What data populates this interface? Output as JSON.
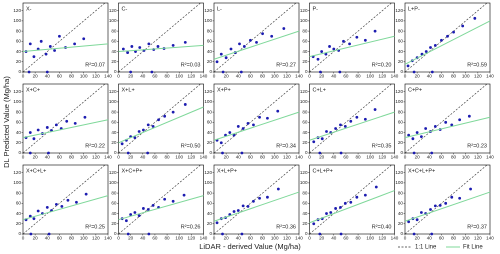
{
  "figure": {
    "ylabel": "DL Predicted Value (Mg/ha)",
    "xlabel": "LiDAR - derived Value (Mg/ha)",
    "legend": [
      {
        "name": "1:1 Line",
        "color": "#333333"
      },
      {
        "name": "Fit Line",
        "color": "#7fd89a"
      }
    ],
    "point_color": "#1c1cb0",
    "one_to_one": [
      0,
      135
    ]
  },
  "chart_data": [
    {
      "type": "scatter",
      "title": "X-",
      "annotation": "R²=0.07",
      "x": [
        5,
        12,
        18,
        25,
        30,
        38,
        45,
        52,
        60,
        70,
        85,
        100,
        10,
        40
      ],
      "y": [
        40,
        55,
        30,
        45,
        60,
        35,
        50,
        42,
        70,
        48,
        55,
        65,
        0,
        0
      ],
      "fit": {
        "x": [
          0,
          140
        ],
        "y": [
          40,
          55
        ]
      },
      "xlim": [
        0,
        140
      ],
      "ylim": [
        0,
        135
      ],
      "xticks": [
        0,
        20,
        40,
        60,
        80,
        100,
        120,
        140
      ],
      "yticks": [
        0,
        20,
        40,
        60,
        80,
        100,
        120
      ]
    },
    {
      "type": "scatter",
      "title": "C-",
      "annotation": "R²=0.03",
      "x": [
        8,
        15,
        22,
        28,
        35,
        42,
        50,
        58,
        65,
        75,
        90,
        110,
        20,
        55
      ],
      "y": [
        45,
        38,
        50,
        40,
        48,
        42,
        55,
        44,
        50,
        46,
        52,
        58,
        0,
        0
      ],
      "fit": {
        "x": [
          0,
          140
        ],
        "y": [
          40,
          52
        ]
      },
      "xlim": [
        0,
        140
      ],
      "ylim": [
        0,
        135
      ],
      "xticks": [
        0,
        20,
        40,
        60,
        80,
        100,
        120,
        140
      ],
      "yticks": [
        0,
        20,
        40,
        60,
        80,
        100,
        120
      ]
    },
    {
      "type": "scatter",
      "title": "L-",
      "annotation": "R²=0.27",
      "x": [
        5,
        12,
        20,
        28,
        35,
        42,
        50,
        60,
        70,
        80,
        95,
        115,
        15,
        45
      ],
      "y": [
        20,
        35,
        28,
        45,
        38,
        55,
        50,
        62,
        58,
        75,
        70,
        85,
        0,
        0
      ],
      "fit": {
        "x": [
          0,
          140
        ],
        "y": [
          25,
          80
        ]
      },
      "xlim": [
        0,
        140
      ],
      "ylim": [
        0,
        135
      ],
      "xticks": [
        0,
        20,
        40,
        60,
        80,
        100,
        120,
        140
      ],
      "yticks": [
        0,
        20,
        40,
        60,
        80,
        100,
        120
      ]
    },
    {
      "type": "scatter",
      "title": "P-",
      "annotation": "R²=0.20",
      "x": [
        6,
        14,
        20,
        27,
        33,
        40,
        48,
        56,
        66,
        78,
        92,
        108,
        18,
        50
      ],
      "y": [
        30,
        25,
        40,
        35,
        50,
        45,
        42,
        60,
        55,
        68,
        62,
        80,
        0,
        0
      ],
      "fit": {
        "x": [
          0,
          140
        ],
        "y": [
          30,
          70
        ]
      },
      "xlim": [
        0,
        140
      ],
      "ylim": [
        0,
        135
      ],
      "xticks": [
        0,
        20,
        40,
        60,
        80,
        100,
        120,
        140
      ],
      "yticks": [
        0,
        20,
        40,
        60,
        80,
        100,
        120
      ]
    },
    {
      "type": "scatter",
      "title": "L+P-",
      "annotation": "R²=0.59",
      "x": [
        5,
        12,
        20,
        28,
        35,
        42,
        50,
        60,
        70,
        80,
        95,
        115,
        15,
        45
      ],
      "y": [
        12,
        22,
        28,
        35,
        40,
        48,
        52,
        62,
        70,
        78,
        90,
        105,
        0,
        0
      ],
      "fit": {
        "x": [
          0,
          140
        ],
        "y": [
          15,
          100
        ]
      },
      "xlim": [
        0,
        140
      ],
      "ylim": [
        0,
        135
      ],
      "xticks": [
        0,
        20,
        40,
        60,
        80,
        100,
        120,
        140
      ],
      "yticks": [
        0,
        20,
        40,
        60,
        80,
        100,
        120
      ]
    },
    {
      "type": "scatter",
      "title": "X+C+",
      "annotation": "R²=0.22",
      "x": [
        5,
        12,
        18,
        25,
        32,
        40,
        47,
        55,
        63,
        72,
        86,
        102,
        12,
        42
      ],
      "y": [
        30,
        40,
        28,
        45,
        38,
        50,
        44,
        55,
        48,
        62,
        58,
        70,
        0,
        0
      ],
      "fit": {
        "x": [
          0,
          140
        ],
        "y": [
          30,
          65
        ]
      },
      "xlim": [
        0,
        140
      ],
      "ylim": [
        0,
        135
      ],
      "xticks": [
        0,
        20,
        40,
        60,
        80,
        100,
        120,
        140
      ],
      "yticks": [
        0,
        20,
        40,
        60,
        80,
        100,
        120
      ]
    },
    {
      "type": "scatter",
      "title": "X+L+",
      "annotation": "R²=0.50",
      "x": [
        6,
        13,
        20,
        27,
        34,
        41,
        49,
        57,
        66,
        76,
        90,
        110,
        16,
        48
      ],
      "y": [
        18,
        25,
        32,
        30,
        42,
        45,
        55,
        52,
        65,
        72,
        80,
        95,
        0,
        0
      ],
      "fit": {
        "x": [
          0,
          140
        ],
        "y": [
          20,
          90
        ]
      },
      "xlim": [
        0,
        140
      ],
      "ylim": [
        0,
        135
      ],
      "xticks": [
        0,
        20,
        40,
        60,
        80,
        100,
        120,
        140
      ],
      "yticks": [
        0,
        20,
        40,
        60,
        80,
        100,
        120
      ]
    },
    {
      "type": "scatter",
      "title": "X+P+",
      "annotation": "R²=0.34",
      "x": [
        5,
        12,
        19,
        26,
        33,
        40,
        48,
        56,
        65,
        75,
        88,
        105,
        14,
        46
      ],
      "y": [
        25,
        20,
        35,
        40,
        35,
        52,
        48,
        58,
        55,
        70,
        68,
        82,
        0,
        0
      ],
      "fit": {
        "x": [
          0,
          140
        ],
        "y": [
          25,
          80
        ]
      },
      "xlim": [
        0,
        140
      ],
      "ylim": [
        0,
        135
      ],
      "xticks": [
        0,
        20,
        40,
        60,
        80,
        100,
        120,
        140
      ],
      "yticks": [
        0,
        20,
        40,
        60,
        80,
        100,
        120
      ]
    },
    {
      "type": "scatter",
      "title": "C+L+",
      "annotation": "R²=0.35",
      "x": [
        7,
        14,
        21,
        28,
        35,
        43,
        51,
        59,
        68,
        78,
        92,
        108,
        17,
        52
      ],
      "y": [
        22,
        30,
        28,
        42,
        40,
        48,
        55,
        52,
        62,
        70,
        66,
        85,
        0,
        0
      ],
      "fit": {
        "x": [
          0,
          140
        ],
        "y": [
          25,
          80
        ]
      },
      "xlim": [
        0,
        140
      ],
      "ylim": [
        0,
        135
      ],
      "xticks": [
        0,
        20,
        40,
        60,
        80,
        100,
        120,
        140
      ],
      "yticks": [
        0,
        20,
        40,
        60,
        80,
        100,
        120
      ]
    },
    {
      "type": "scatter",
      "title": "C+P+",
      "annotation": "R²=0.23",
      "x": [
        6,
        13,
        20,
        27,
        34,
        42,
        50,
        58,
        67,
        77,
        90,
        106,
        15,
        44
      ],
      "y": [
        35,
        28,
        40,
        32,
        48,
        42,
        52,
        46,
        60,
        55,
        65,
        72,
        0,
        0
      ],
      "fit": {
        "x": [
          0,
          140
        ],
        "y": [
          30,
          70
        ]
      },
      "xlim": [
        0,
        140
      ],
      "ylim": [
        0,
        135
      ],
      "xticks": [
        0,
        20,
        40,
        60,
        80,
        100,
        120,
        140
      ],
      "yticks": [
        0,
        20,
        40,
        60,
        80,
        100,
        120
      ]
    },
    {
      "type": "scatter",
      "title": "X+C+L+",
      "annotation": "R²=0.25",
      "x": [
        5,
        12,
        18,
        25,
        32,
        40,
        47,
        55,
        64,
        74,
        88,
        104,
        13,
        43
      ],
      "y": [
        28,
        35,
        30,
        45,
        40,
        52,
        46,
        58,
        54,
        66,
        62,
        78,
        0,
        0
      ],
      "fit": {
        "x": [
          0,
          140
        ],
        "y": [
          28,
          75
        ]
      },
      "xlim": [
        0,
        140
      ],
      "ylim": [
        0,
        135
      ],
      "xticks": [
        0,
        20,
        40,
        60,
        80,
        100,
        120,
        140
      ],
      "yticks": [
        0,
        20,
        40,
        60,
        80,
        100,
        120
      ]
    },
    {
      "type": "scatter",
      "title": "X+C+P+",
      "annotation": "R²=0.26",
      "x": [
        6,
        13,
        20,
        27,
        34,
        41,
        49,
        57,
        66,
        76,
        90,
        108,
        16,
        50
      ],
      "y": [
        30,
        26,
        38,
        42,
        36,
        50,
        48,
        56,
        52,
        68,
        64,
        76,
        0,
        0
      ],
      "fit": {
        "x": [
          0,
          140
        ],
        "y": [
          28,
          75
        ]
      },
      "xlim": [
        0,
        140
      ],
      "ylim": [
        0,
        135
      ],
      "xticks": [
        0,
        20,
        40,
        60,
        80,
        100,
        120,
        140
      ],
      "yticks": [
        0,
        20,
        40,
        60,
        80,
        100,
        120
      ]
    },
    {
      "type": "scatter",
      "title": "X+L+P+",
      "annotation": "R²=0.36",
      "x": [
        5,
        12,
        19,
        26,
        33,
        40,
        48,
        56,
        65,
        75,
        88,
        106,
        14,
        46
      ],
      "y": [
        22,
        30,
        32,
        38,
        44,
        46,
        55,
        54,
        64,
        70,
        72,
        88,
        0,
        0
      ],
      "fit": {
        "x": [
          0,
          140
        ],
        "y": [
          25,
          82
        ]
      },
      "xlim": [
        0,
        140
      ],
      "ylim": [
        0,
        135
      ],
      "xticks": [
        0,
        20,
        40,
        60,
        80,
        100,
        120,
        140
      ],
      "yticks": [
        0,
        20,
        40,
        60,
        80,
        100,
        120
      ]
    },
    {
      "type": "scatter",
      "title": "C+L+P+",
      "annotation": "R²=0.40",
      "x": [
        7,
        14,
        21,
        28,
        35,
        43,
        51,
        59,
        68,
        78,
        92,
        110,
        17,
        52
      ],
      "y": [
        20,
        28,
        30,
        40,
        42,
        50,
        52,
        60,
        62,
        72,
        76,
        92,
        0,
        0
      ],
      "fit": {
        "x": [
          0,
          140
        ],
        "y": [
          22,
          85
        ]
      },
      "xlim": [
        0,
        140
      ],
      "ylim": [
        0,
        135
      ],
      "xticks": [
        0,
        20,
        40,
        60,
        80,
        100,
        120,
        140
      ],
      "yticks": [
        0,
        20,
        40,
        60,
        80,
        100,
        120
      ]
    },
    {
      "type": "scatter",
      "title": "X+C+L+P+",
      "annotation": "R²=0.37",
      "x": [
        6,
        13,
        20,
        27,
        34,
        42,
        50,
        58,
        67,
        77,
        90,
        108,
        15,
        44
      ],
      "y": [
        24,
        30,
        28,
        42,
        40,
        48,
        55,
        56,
        60,
        72,
        70,
        88,
        0,
        0
      ],
      "fit": {
        "x": [
          0,
          140
        ],
        "y": [
          25,
          82
        ]
      },
      "xlim": [
        0,
        140
      ],
      "ylim": [
        0,
        135
      ],
      "xticks": [
        0,
        20,
        40,
        60,
        80,
        100,
        120,
        140
      ],
      "yticks": [
        0,
        20,
        40,
        60,
        80,
        100,
        120
      ]
    }
  ]
}
